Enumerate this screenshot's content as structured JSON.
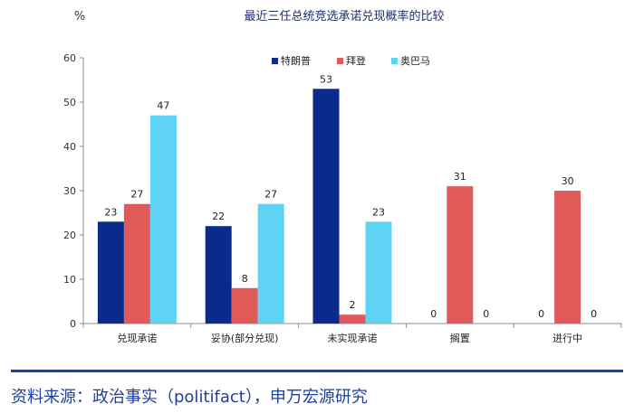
{
  "chart_data": {
    "type": "bar",
    "title": "最近三任总统竞选承诺兑现概率的比较",
    "ylabel": "%",
    "xlabel": "",
    "ylim": [
      0,
      60
    ],
    "yticks": [
      0,
      10,
      20,
      30,
      40,
      50,
      60
    ],
    "categories": [
      "兑现承诺",
      "妥协(部分兑现)",
      "未实现承诺",
      "搁置",
      "进行中"
    ],
    "series": [
      {
        "name": "特朗普",
        "color": "#0a2b8c",
        "values": [
          23,
          22,
          53,
          0,
          0
        ]
      },
      {
        "name": "拜登",
        "color": "#e15a5a",
        "values": [
          27,
          8,
          2,
          31,
          30
        ]
      },
      {
        "name": "奥巴马",
        "color": "#5fd3f3",
        "values": [
          47,
          27,
          23,
          0,
          0
        ]
      }
    ],
    "legend_position": "top-center",
    "grid": false
  },
  "footer": {
    "source": "资料来源：政治事实（politifact），申万宏源研究"
  }
}
